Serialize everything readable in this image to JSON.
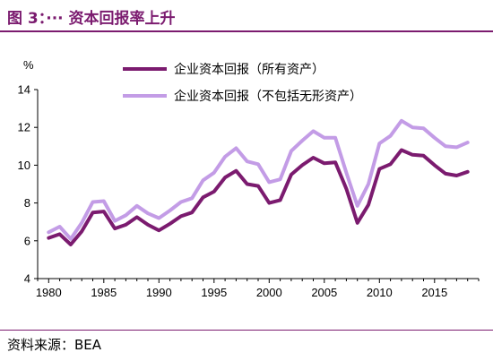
{
  "header": {
    "figure_title": "图 3：··· 资本回报率上升",
    "source": "资料来源：BEA"
  },
  "chart_data": {
    "type": "line",
    "title": "",
    "xlabel": "",
    "ylabel": "%",
    "xlim": [
      1979,
      2019
    ],
    "ylim": [
      4,
      14
    ],
    "xticks": [
      1980,
      1985,
      1990,
      1995,
      2000,
      2005,
      2010,
      2015
    ],
    "yticks": [
      4,
      6,
      8,
      10,
      12,
      14
    ],
    "grid": false,
    "legend_position": "top-center",
    "x": [
      1980,
      1981,
      1982,
      1983,
      1984,
      1985,
      1986,
      1987,
      1988,
      1989,
      1990,
      1991,
      1992,
      1993,
      1994,
      1995,
      1996,
      1997,
      1998,
      1999,
      2000,
      2001,
      2002,
      2003,
      2004,
      2005,
      2006,
      2007,
      2008,
      2009,
      2010,
      2011,
      2012,
      2013,
      2014,
      2015,
      2016,
      2017,
      2018
    ],
    "series": [
      {
        "name": "企业资本回报（所有资产）",
        "color": "#7b1b6f",
        "values": [
          6.15,
          6.35,
          5.8,
          6.5,
          7.5,
          7.55,
          6.65,
          6.85,
          7.25,
          6.85,
          6.55,
          6.9,
          7.3,
          7.5,
          8.3,
          8.6,
          9.35,
          9.7,
          9.0,
          8.9,
          8.0,
          8.15,
          9.5,
          10.0,
          10.4,
          10.1,
          10.15,
          8.75,
          6.95,
          7.9,
          9.8,
          10.05,
          10.8,
          10.55,
          10.5,
          10.0,
          9.55,
          9.45,
          9.65
        ]
      },
      {
        "name": "企业资本回报（不包括无形资产）",
        "color": "#c39ce6",
        "values": [
          6.45,
          6.75,
          6.1,
          6.95,
          8.05,
          8.1,
          7.05,
          7.35,
          7.85,
          7.45,
          7.2,
          7.6,
          8.05,
          8.25,
          9.2,
          9.6,
          10.45,
          10.9,
          10.2,
          10.05,
          9.1,
          9.25,
          10.75,
          11.3,
          11.8,
          11.45,
          11.45,
          9.6,
          7.85,
          9.0,
          11.15,
          11.55,
          12.35,
          12.0,
          11.95,
          11.45,
          11.0,
          10.95,
          11.2
        ]
      }
    ]
  }
}
